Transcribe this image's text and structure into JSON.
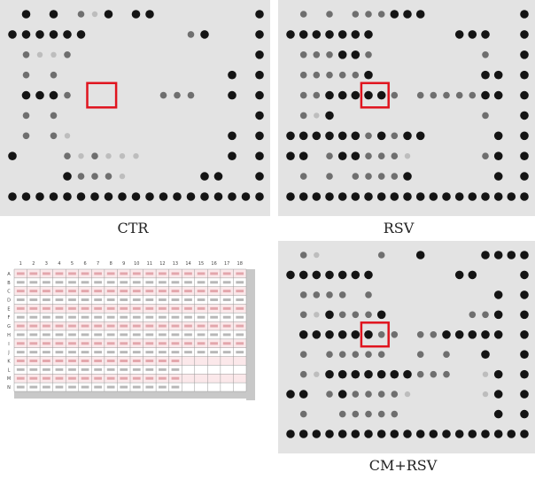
{
  "panels": [
    {
      "id": "ctr",
      "label": "CTR"
    },
    {
      "id": "rsv",
      "label": "RSV"
    },
    {
      "id": "cmrsv",
      "label": "CM+RSV"
    }
  ],
  "highlight_color": "#e0141e",
  "map": {
    "columns": [
      "1",
      "2",
      "3",
      "4",
      "5",
      "6",
      "7",
      "8",
      "9",
      "10",
      "11",
      "12",
      "13",
      "14",
      "15",
      "16",
      "17",
      "18"
    ],
    "rows": [
      "A",
      "B",
      "C",
      "D",
      "E",
      "F",
      "G",
      "H",
      "I",
      "J",
      "K",
      "L",
      "M",
      "N"
    ]
  }
}
